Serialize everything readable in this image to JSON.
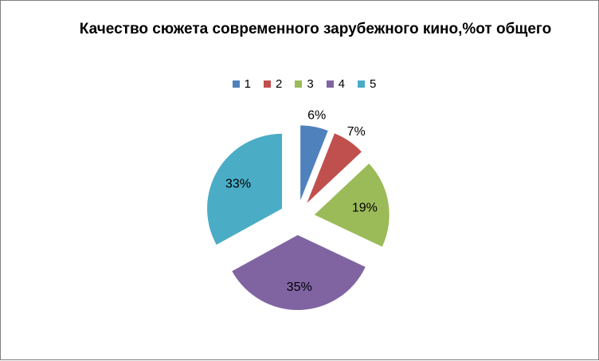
{
  "chart_data": {
    "type": "pie",
    "title": "Качество сюжета современного зарубежного кино,%от общего",
    "categories": [
      "1",
      "2",
      "3",
      "4",
      "5"
    ],
    "values": [
      6,
      7,
      19,
      35,
      33
    ],
    "labels": [
      "6%",
      "7%",
      "19%",
      "35%",
      "33%"
    ],
    "colors": [
      "#4f81bd",
      "#c0504d",
      "#9bbb59",
      "#8064a2",
      "#4bacc6"
    ],
    "legend_position": "top",
    "exploded": true
  }
}
